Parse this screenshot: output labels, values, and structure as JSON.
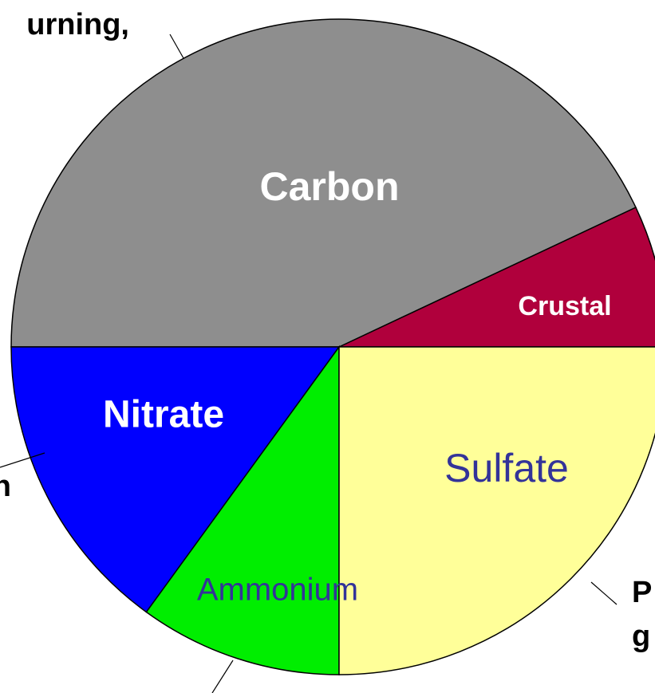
{
  "chart_data": {
    "type": "pie",
    "categories": [
      "Crustal",
      "Carbon",
      "Nitrate",
      "Ammonium",
      "Sulfate"
    ],
    "values": [
      7,
      43,
      15,
      10,
      25
    ],
    "colors": [
      "#b0003c",
      "#8e8e8e",
      "#0000ff",
      "#00ee00",
      "#ffff99"
    ],
    "annotations": [
      "urning,",
      "n",
      "P",
      "g"
    ]
  }
}
